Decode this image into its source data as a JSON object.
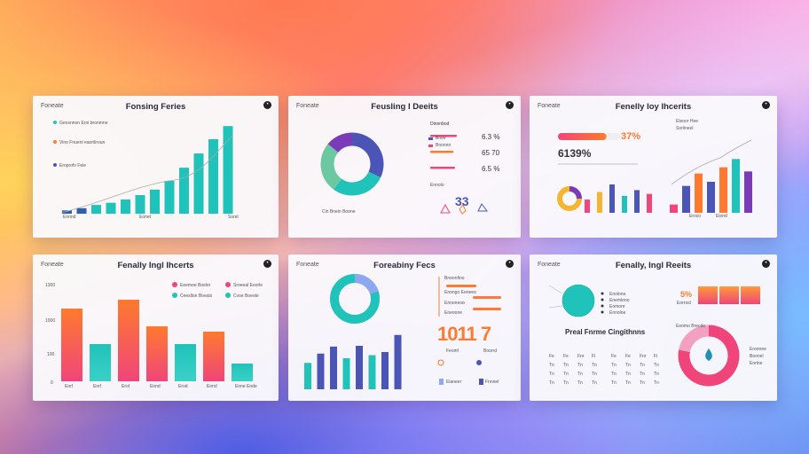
{
  "colors": {
    "teal": "#20c3b9",
    "blue": "#4a55b5",
    "orange": "#ff7a2e",
    "pink": "#f0457a",
    "purple": "#7b3bb8",
    "green": "#6cc8a0",
    "yellow": "#f4b631"
  },
  "cards": [
    {
      "brand": "Foneate",
      "title": "Fonsing Feries",
      "legend": [
        "Geosnnon Eroi bronmne",
        "Vino Fnuenl eaoriliroun",
        "Eroprofv Feie"
      ],
      "x_labels": [
        "Ennnd",
        "Eonet",
        "Sorel"
      ],
      "chart_data": {
        "type": "bar",
        "values": [
          3,
          5,
          8,
          10,
          13,
          17,
          22,
          30,
          42,
          55,
          68,
          80
        ],
        "ylim": [
          0,
          85
        ]
      }
    },
    {
      "brand": "Foneate",
      "title": "Feusling I Deeits",
      "donut_caption": "Cin Bnein Boone",
      "rows": [
        {
          "label": "Dinnnbod",
          "value": "6.3 %"
        },
        {
          "label": "Bnmne",
          "value": "65 70"
        },
        {
          "label": "Mn",
          "value": "6.5 %"
        }
      ],
      "legend": [
        "Bnee",
        "Bnonnn"
      ],
      "section_label": "Ennolo",
      "metric": "33",
      "chart_data": {
        "type": "pie",
        "values": [
          32,
          28,
          26,
          14
        ]
      }
    },
    {
      "brand": "Foneate",
      "title": "Fenelly Ioy Ihcerits",
      "progress_value": "37%",
      "progress_fraction": 0.78,
      "metric": "6139%",
      "legend": [
        "Eleoor Hee",
        "Sorlineel"
      ],
      "x_labels": [
        "Eroco",
        "Elond"
      ],
      "chart_data_small": {
        "type": "bar",
        "values": [
          14,
          22,
          30,
          18,
          24,
          20
        ]
      },
      "chart_data": {
        "type": "bar",
        "values": [
          8,
          26,
          38,
          30,
          44,
          52,
          40
        ],
        "ylim": [
          0,
          60
        ]
      }
    },
    {
      "brand": "Foneate",
      "title": "Fenally Ingl Ihcerts",
      "legend": [
        "Eeemoe Boeler",
        "Sroeeal Eeorle",
        "Ceesllon Boeals",
        "Cvoe Boeole"
      ],
      "y_labels": [
        "1300",
        "1000",
        "100",
        "0"
      ],
      "x_labels": [
        "Enrl",
        "Enrl",
        "Erol",
        "Ennd",
        "Erod",
        "Enrol",
        "Enne Ende"
      ],
      "chart_data": {
        "type": "bar",
        "values": [
          82,
          42,
          92,
          62,
          42,
          56,
          20
        ],
        "ylim": [
          0,
          100
        ]
      }
    },
    {
      "brand": "Foneate",
      "title": "Foreabiny Fecs",
      "rows": [
        "Bnoonfino",
        "Enongo Eeneeo",
        "Ennoneoo",
        "Eneoone"
      ],
      "metric": "1011 7",
      "legend": [
        "Feoirrl",
        "Boorrd",
        "Elaneer",
        "Fnnnel"
      ],
      "chart_data": {
        "type": "bar",
        "values": [
          34,
          46,
          55,
          40,
          56,
          44,
          48,
          70
        ],
        "ylim": [
          0,
          80
        ]
      }
    },
    {
      "brand": "Foneate",
      "title": "Fenally, Ingl Reeits",
      "pie_rows": [
        "Enolone",
        "Enemlono",
        "Eomore",
        "Ennoloe"
      ],
      "center_title": "Preal Fnrme Cingithnns",
      "percent": "5%",
      "percent_caption": "Eorrosl",
      "donut_caption": "Eeomo Brecde",
      "donut_legend": [
        "Eroonee",
        "Boonel",
        "Enrlne"
      ],
      "table": [
        [
          "Fe",
          "Fe",
          "Fnr",
          "Fi"
        ],
        [
          "Tn",
          "Tn",
          "Tn",
          "Tn"
        ],
        [
          "Tn",
          "Tn",
          "Tn",
          "Tn"
        ],
        [
          "Tn",
          "Tn",
          "Tn",
          "Tn"
        ]
      ],
      "chart_data": {
        "type": "pie",
        "values": [
          78,
          22
        ]
      }
    }
  ]
}
